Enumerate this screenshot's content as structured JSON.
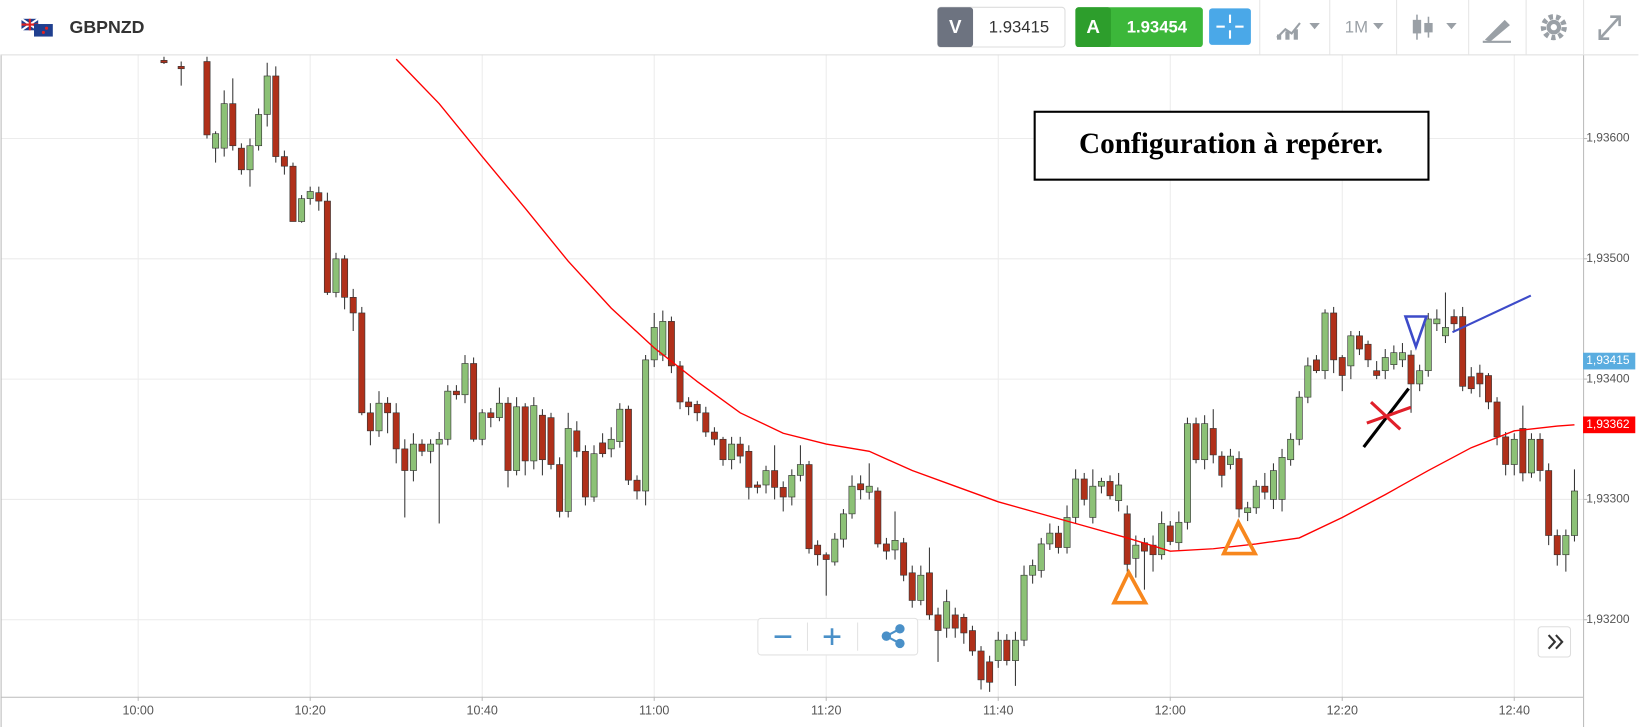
{
  "header": {
    "symbol": "GBPNZD",
    "sell_label": "V",
    "sell_price": "1.93415",
    "buy_label": "A",
    "buy_price": "1.93454",
    "timeframe": "1M"
  },
  "chart_data": {
    "type": "candlestick",
    "annotation": "Configuration à repérer.",
    "up_color": "#8cc176",
    "down_color": "#b0301a",
    "xlim": [
      "09:44",
      "12:48"
    ],
    "xticks": [
      "10:00",
      "10:20",
      "10:40",
      "11:00",
      "11:20",
      "11:40",
      "12:00",
      "12:20",
      "12:40"
    ],
    "ylim": [
      1.93136,
      1.9367
    ],
    "yticks": [
      {
        "value": 1.932,
        "label": "1,93200"
      },
      {
        "value": 1.933,
        "label": "1,93300"
      },
      {
        "value": 1.934,
        "label": "1,93400"
      },
      {
        "value": 1.935,
        "label": "1,93500"
      },
      {
        "value": 1.936,
        "label": "1,93600"
      }
    ],
    "grid": true,
    "x": [
      "10:03",
      "10:05",
      "10:08",
      "10:09",
      "10:10",
      "10:11",
      "10:12",
      "10:13",
      "10:14",
      "10:15",
      "10:16",
      "10:17",
      "10:18",
      "10:19",
      "10:20",
      "10:21",
      "10:22",
      "10:23",
      "10:24",
      "10:25",
      "10:26",
      "10:27",
      "10:28",
      "10:29",
      "10:30",
      "10:31",
      "10:32",
      "10:33",
      "10:34",
      "10:35",
      "10:36",
      "10:37",
      "10:38",
      "10:39",
      "10:40",
      "10:41",
      "10:42",
      "10:43",
      "10:44",
      "10:45",
      "10:46",
      "10:47",
      "10:48",
      "10:49",
      "10:50",
      "10:51",
      "10:52",
      "10:53",
      "10:54",
      "10:55",
      "10:56",
      "10:57",
      "10:58",
      "10:59",
      "11:00",
      "11:01",
      "11:02",
      "11:03",
      "11:04",
      "11:05",
      "11:06",
      "11:07",
      "11:08",
      "11:09",
      "11:10",
      "11:11",
      "11:12",
      "11:13",
      "11:14",
      "11:15",
      "11:16",
      "11:17",
      "11:18",
      "11:19",
      "11:20",
      "11:21",
      "11:22",
      "11:23",
      "11:24",
      "11:25",
      "11:26",
      "11:27",
      "11:28",
      "11:29",
      "11:30",
      "11:31",
      "11:32",
      "11:33",
      "11:34",
      "11:35",
      "11:36",
      "11:37",
      "11:38",
      "11:39",
      "11:40",
      "11:41",
      "11:42",
      "11:43",
      "11:44",
      "11:45",
      "11:46",
      "11:47",
      "11:48",
      "11:49",
      "11:50",
      "11:51",
      "11:52",
      "11:53",
      "11:54",
      "11:55",
      "11:56",
      "11:57",
      "11:58",
      "11:59",
      "12:00",
      "12:01",
      "12:02",
      "12:03",
      "12:04",
      "12:05",
      "12:06",
      "12:07",
      "12:08",
      "12:09",
      "12:10",
      "12:11",
      "12:12",
      "12:13",
      "12:14",
      "12:15",
      "12:16",
      "12:17",
      "12:18",
      "12:19",
      "12:20",
      "12:21",
      "12:22",
      "12:23",
      "12:24",
      "12:25",
      "12:26",
      "12:27",
      "12:28",
      "12:29",
      "12:30",
      "12:31",
      "12:32",
      "12:33",
      "12:34",
      "12:35",
      "12:36",
      "12:37",
      "12:38",
      "12:39",
      "12:40",
      "12:41",
      "12:42",
      "12:43",
      "12:44",
      "12:45",
      "12:46",
      "12:47"
    ],
    "open": [
      1.93665,
      1.9366,
      1.93664,
      1.93592,
      1.93592,
      1.93629,
      1.93592,
      1.93574,
      1.93594,
      1.9362,
      1.93652,
      1.93585,
      1.93577,
      1.93531,
      1.9355,
      1.93555,
      1.93548,
      1.93472,
      1.935,
      1.93468,
      1.93455,
      1.93372,
      1.93357,
      1.9338,
      1.93372,
      1.93342,
      1.93324,
      1.93346,
      1.9334,
      1.93346,
      1.9335,
      1.9339,
      1.93387,
      1.93413,
      1.9335,
      1.93372,
      1.93368,
      1.9338,
      1.93324,
      1.93377,
      1.93332,
      1.9337,
      1.93368,
      1.93329,
      1.9329,
      1.93357,
      1.9334,
      1.93302,
      1.93347,
      1.93342,
      1.93348,
      1.93375,
      1.93316,
      1.93307,
      1.93416,
      1.9342,
      1.93448,
      1.93411,
      1.93381,
      1.93379,
      1.93372,
      1.93356,
      1.9335,
      1.93333,
      1.93346,
      1.9334,
      1.93312,
      1.93312,
      1.93324,
      1.9331,
      1.93302,
      1.9332,
      1.93329,
      1.93262,
      1.93254,
      1.93248,
      1.93267,
      1.93288,
      1.93313,
      1.93306,
      1.93307,
      1.93263,
      1.93258,
      1.93264,
      1.93239,
      1.93216,
      1.93239,
      1.93204,
      1.93193,
      1.93204,
      1.93202,
      1.93191,
      1.93174,
      1.93165,
      1.93166,
      1.93183,
      1.93166,
      1.93183,
      1.93237,
      1.93241,
      1.93263,
      1.93272,
      1.9326,
      1.93285,
      1.93317,
      1.93285,
      1.93311,
      1.93315,
      1.93299,
      1.93288,
      1.93251,
      1.93264,
      1.93262,
      1.93254,
      1.93278,
      1.93264,
      1.93281,
      1.93363,
      1.93333,
      1.93359,
      1.93336,
      1.93329,
      1.93334,
      1.93289,
      1.93293,
      1.93311,
      1.933,
      1.933,
      1.93333,
      1.9335,
      1.93385,
      1.93416,
      1.93407,
      1.93455,
      1.93418,
      1.93411,
      1.93436,
      1.93429,
      1.93407,
      1.93407,
      1.93412,
      1.93416,
      1.9342,
      1.93396,
      1.93407,
      1.93446,
      1.93436,
      1.93452,
      1.93452,
      1.93402,
      1.93405,
      1.93403,
      1.93381,
      1.93352,
      1.93329,
      1.93359,
      1.93322,
      1.9335,
      1.93324,
      1.9327,
      1.93254,
      1.9327
    ],
    "high": [
      1.93668,
      1.93664,
      1.93668,
      1.93606,
      1.9364,
      1.9365,
      1.93596,
      1.936,
      1.93625,
      1.93663,
      1.9366,
      1.9359,
      1.9358,
      1.93553,
      1.9356,
      1.9356,
      1.93555,
      1.93505,
      1.93503,
      1.93475,
      1.9346,
      1.9338,
      1.9339,
      1.93385,
      1.9338,
      1.9335,
      1.93355,
      1.9335,
      1.9335,
      1.93356,
      1.93395,
      1.93395,
      1.9342,
      1.93418,
      1.93375,
      1.93376,
      1.93393,
      1.93385,
      1.93385,
      1.9338,
      1.93385,
      1.93375,
      1.93372,
      1.93335,
      1.93372,
      1.93365,
      1.93345,
      1.93345,
      1.93355,
      1.9336,
      1.9338,
      1.93378,
      1.9332,
      1.9342,
      1.93455,
      1.93457,
      1.93452,
      1.93415,
      1.93385,
      1.93382,
      1.93377,
      1.9336,
      1.93352,
      1.93352,
      1.93352,
      1.93345,
      1.93315,
      1.93328,
      1.93345,
      1.93315,
      1.93325,
      1.93345,
      1.93332,
      1.93266,
      1.93256,
      1.93272,
      1.93292,
      1.9332,
      1.9332,
      1.9333,
      1.9331,
      1.93268,
      1.9329,
      1.93268,
      1.93245,
      1.93245,
      1.9326,
      1.9321,
      1.93225,
      1.9321,
      1.93205,
      1.93195,
      1.93178,
      1.9317,
      1.9319,
      1.93188,
      1.9319,
      1.93245,
      1.9325,
      1.93268,
      1.9328,
      1.93278,
      1.93295,
      1.93325,
      1.93322,
      1.93325,
      1.93318,
      1.9332,
      1.93322,
      1.93295,
      1.9327,
      1.93268,
      1.9327,
      1.9329,
      1.93282,
      1.9329,
      1.93368,
      1.93368,
      1.9337,
      1.93375,
      1.9334,
      1.93342,
      1.9334,
      1.93298,
      1.93316,
      1.93322,
      1.9333,
      1.93342,
      1.93355,
      1.9339,
      1.93418,
      1.9342,
      1.93458,
      1.9346,
      1.9342,
      1.9344,
      1.9344,
      1.93432,
      1.93415,
      1.93425,
      1.93428,
      1.9343,
      1.93424,
      1.93412,
      1.93455,
      1.93458,
      1.93472,
      1.93458,
      1.9346,
      1.9341,
      1.93412,
      1.93405,
      1.93385,
      1.93356,
      1.93355,
      1.93378,
      1.93355,
      1.93355,
      1.9333,
      1.93275,
      1.93275,
      1.93325
    ],
    "low": [
      1.93662,
      1.93644,
      1.936,
      1.9358,
      1.93585,
      1.9359,
      1.9357,
      1.9356,
      1.9359,
      1.9361,
      1.9358,
      1.9357,
      1.93531,
      1.9353,
      1.93545,
      1.9354,
      1.9347,
      1.93468,
      1.93458,
      1.9344,
      1.9337,
      1.93345,
      1.93352,
      1.93355,
      1.9333,
      1.93285,
      1.93315,
      1.93336,
      1.9333,
      1.9328,
      1.93345,
      1.93383,
      1.9338,
      1.93348,
      1.93345,
      1.9336,
      1.93365,
      1.9331,
      1.9332,
      1.9332,
      1.93325,
      1.9332,
      1.93325,
      1.93285,
      1.93285,
      1.93335,
      1.93295,
      1.93298,
      1.93335,
      1.93335,
      1.93343,
      1.93312,
      1.933,
      1.93295,
      1.9341,
      1.93415,
      1.93405,
      1.93375,
      1.9337,
      1.93365,
      1.93352,
      1.93345,
      1.93328,
      1.93325,
      1.9333,
      1.933,
      1.93305,
      1.93305,
      1.933,
      1.9329,
      1.93295,
      1.93315,
      1.93255,
      1.93245,
      1.9322,
      1.93245,
      1.9326,
      1.93284,
      1.933,
      1.933,
      1.9326,
      1.9325,
      1.9325,
      1.93232,
      1.9321,
      1.93212,
      1.932,
      1.93165,
      1.93185,
      1.93185,
      1.9318,
      1.9317,
      1.93142,
      1.9314,
      1.9316,
      1.93162,
      1.93145,
      1.93178,
      1.9323,
      1.93235,
      1.93258,
      1.93255,
      1.93255,
      1.9328,
      1.93295,
      1.9328,
      1.93305,
      1.933,
      1.9329,
      1.9324,
      1.93235,
      1.93225,
      1.9324,
      1.9325,
      1.93262,
      1.93258,
      1.93275,
      1.9333,
      1.93325,
      1.9333,
      1.9331,
      1.93325,
      1.93285,
      1.93282,
      1.93288,
      1.933,
      1.93292,
      1.9329,
      1.93328,
      1.93345,
      1.9338,
      1.93405,
      1.934,
      1.93405,
      1.9339,
      1.934,
      1.9342,
      1.9341,
      1.934,
      1.934,
      1.93408,
      1.9341,
      1.93372,
      1.9339,
      1.93402,
      1.9344,
      1.9343,
      1.9344,
      1.9339,
      1.93388,
      1.93385,
      1.93375,
      1.93345,
      1.9332,
      1.9332,
      1.93315,
      1.93318,
      1.93315,
      1.93262,
      1.93245,
      1.9324,
      1.93265
    ],
    "close": [
      1.93663,
      1.93658,
      1.93603,
      1.93604,
      1.93629,
      1.93594,
      1.93574,
      1.93594,
      1.9362,
      1.93652,
      1.93585,
      1.93577,
      1.93531,
      1.9355,
      1.93556,
      1.93548,
      1.93472,
      1.935,
      1.93468,
      1.93455,
      1.93372,
      1.93357,
      1.9338,
      1.93372,
      1.93342,
      1.93324,
      1.93346,
      1.9334,
      1.93346,
      1.9335,
      1.9339,
      1.93387,
      1.93413,
      1.9335,
      1.93372,
      1.93368,
      1.9338,
      1.93324,
      1.93377,
      1.93332,
      1.93378,
      1.93333,
      1.93329,
      1.9329,
      1.93359,
      1.9334,
      1.93302,
      1.93338,
      1.93338,
      1.9335,
      1.93375,
      1.93316,
      1.93307,
      1.93416,
      1.93443,
      1.93448,
      1.93411,
      1.93381,
      1.93377,
      1.93372,
      1.93356,
      1.9335,
      1.93333,
      1.93346,
      1.93336,
      1.9331,
      1.9331,
      1.93324,
      1.9331,
      1.93302,
      1.9332,
      1.93329,
      1.93259,
      1.93254,
      1.9325,
      1.93267,
      1.93288,
      1.93311,
      1.93308,
      1.93311,
      1.93263,
      1.93257,
      1.93266,
      1.93237,
      1.93216,
      1.93237,
      1.93204,
      1.93191,
      1.93215,
      1.93193,
      1.93189,
      1.93174,
      1.9315,
      1.93148,
      1.93183,
      1.93166,
      1.93183,
      1.93237,
      1.93245,
      1.93263,
      1.93272,
      1.9326,
      1.93285,
      1.93317,
      1.933,
      1.93311,
      1.93315,
      1.93303,
      1.93312,
      1.93246,
      1.93262,
      1.93257,
      1.93254,
      1.9328,
      1.93265,
      1.93281,
      1.93363,
      1.93333,
      1.93363,
      1.93337,
      1.9332,
      1.93336,
      1.93292,
      1.93293,
      1.93311,
      1.93306,
      1.93324,
      1.93335,
      1.9335,
      1.93385,
      1.93411,
      1.93407,
      1.93455,
      1.93416,
      1.93403,
      1.93436,
      1.93425,
      1.93416,
      1.93403,
      1.93418,
      1.93422,
      1.93422,
      1.93396,
      1.93407,
      1.9345,
      1.9345,
      1.93443,
      1.93446,
      1.93394,
      1.93392,
      1.93396,
      1.93381,
      1.93352,
      1.93329,
      1.9335,
      1.93322,
      1.9335,
      1.93324,
      1.9327,
      1.93254,
      1.9327,
      1.93307
    ],
    "overlays": [
      {
        "type": "line",
        "color": "#ff0000",
        "x": [
          "10:30",
          "10:35",
          "10:40",
          "10:45",
          "10:50",
          "10:55",
          "11:00",
          "11:05",
          "11:10",
          "11:15",
          "11:20",
          "11:25",
          "11:30",
          "11:35",
          "11:40",
          "11:45",
          "11:50",
          "11:55",
          "12:00",
          "12:05",
          "12:10",
          "12:15",
          "12:20",
          "12:25",
          "12:30",
          "12:35",
          "12:40",
          "12:45",
          "12:47"
        ],
        "values": [
          1.93666,
          1.93629,
          1.93585,
          1.93542,
          1.93498,
          1.93459,
          1.93426,
          1.93398,
          1.93372,
          1.93355,
          1.93346,
          1.9334,
          1.93324,
          1.93311,
          1.93298,
          1.93288,
          1.93278,
          1.93268,
          1.93257,
          1.93259,
          1.93263,
          1.93268,
          1.93285,
          1.93304,
          1.93324,
          1.93343,
          1.93357,
          1.93361,
          1.93362
        ]
      }
    ],
    "price_markers": [
      {
        "value": 1.93415,
        "label": "1,93415",
        "color": "#5aade0"
      },
      {
        "value": 1.93362,
        "label": "1,93362",
        "color": "#ff0000"
      }
    ]
  }
}
